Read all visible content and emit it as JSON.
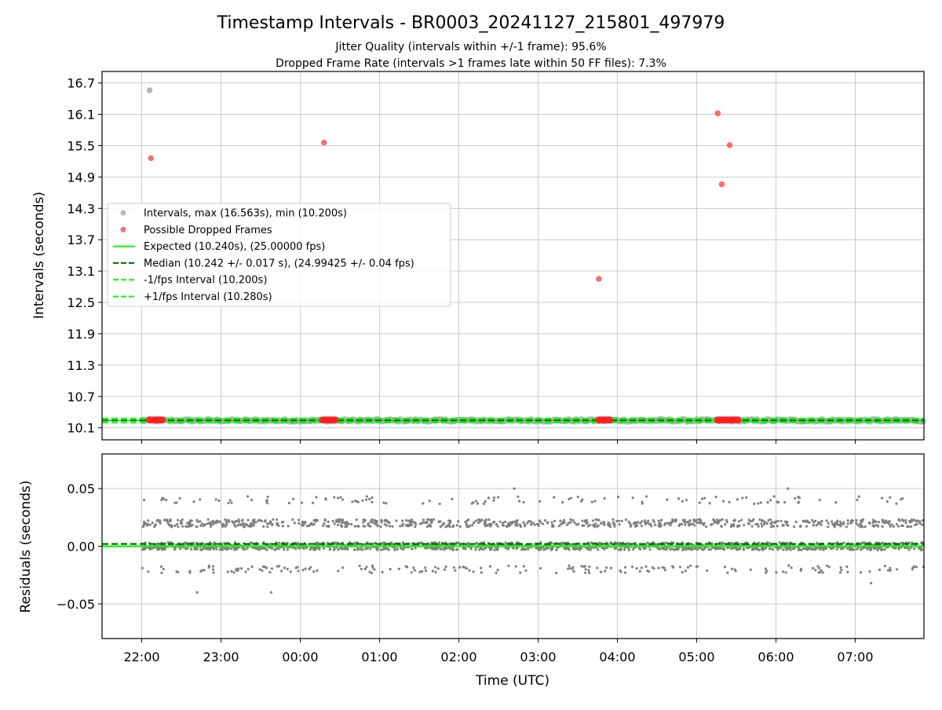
{
  "chart_data": [
    {
      "type": "scatter",
      "title": "Timestamp Intervals - BR0003_20241127_215801_497979",
      "subtitle_lines": [
        "Jitter Quality (intervals within +/-1 frame): 95.6%",
        "Dropped Frame Rate (intervals >1 frames late within 50 FF files): 7.3%"
      ],
      "xlabel": "",
      "ylabel": "Intervals (seconds)",
      "x_tick_labels": [
        "22:00",
        "23:00",
        "00:00",
        "01:00",
        "02:00",
        "03:00",
        "04:00",
        "05:00",
        "06:00",
        "07:00"
      ],
      "yticks": [
        10.1,
        10.7,
        11.3,
        11.9,
        12.5,
        13.1,
        13.7,
        14.3,
        14.9,
        15.5,
        16.1,
        16.7
      ],
      "ytick_labels": [
        "10.1",
        "10.7",
        "11.3",
        "11.9",
        "12.5",
        "13.1",
        "13.7",
        "14.3",
        "14.9",
        "15.5",
        "16.1",
        "16.7"
      ],
      "xlim": [
        "2024-11-27T21:30",
        "2024-11-28T07:52"
      ],
      "ylim": [
        9.87,
        16.92
      ],
      "grid": true,
      "legend_position": "center-left",
      "legend": [
        {
          "label": "Intervals, max (16.563s), min (10.200s)",
          "style": "marker",
          "color": "#a0a0a0"
        },
        {
          "label": "Possible Dropped Frames",
          "style": "marker",
          "color": "#ff5050"
        },
        {
          "label": "Expected (10.240s), (25.00000 fps)",
          "style": "solid",
          "color": "#00ff00"
        },
        {
          "label": "Median (10.242 +/- 0.017 s), (24.99425 +/- 0.04 fps)",
          "style": "dashed",
          "color": "#006400"
        },
        {
          "label": "-1/fps Interval (10.200s)",
          "style": "dashed",
          "color": "#00ff00"
        },
        {
          "label": "+1/fps Interval (10.280s)",
          "style": "dashed",
          "color": "#00ff00"
        }
      ],
      "series": [
        {
          "name": "Intervals, max (16.563s), min (10.200s)",
          "color": "#a0a0a0",
          "outliers": [
            {
              "x": "2024-11-27T22:06",
              "y": 16.56
            }
          ],
          "band": {
            "x_start": "2024-11-27T22:00",
            "x_end": "2024-11-28T07:52",
            "y_min": 10.2,
            "y_max": 10.28
          }
        },
        {
          "name": "Possible Dropped Frames",
          "color": "#ff5050",
          "points": [
            {
              "x": "2024-11-27T22:07",
              "y": 15.26
            },
            {
              "x": "2024-11-28T00:18",
              "y": 15.56
            },
            {
              "x": "2024-11-28T03:46",
              "y": 12.95
            },
            {
              "x": "2024-11-28T05:16",
              "y": 16.12
            },
            {
              "x": "2024-11-28T05:19",
              "y": 14.76
            },
            {
              "x": "2024-11-28T05:25",
              "y": 15.51
            }
          ],
          "clusters": [
            {
              "x_start": "2024-11-27T22:06",
              "x_end": "2024-11-27T22:16",
              "y": 10.25
            },
            {
              "x_start": "2024-11-28T00:17",
              "x_end": "2024-11-28T00:27",
              "y": 10.25
            },
            {
              "x_start": "2024-11-28T03:46",
              "x_end": "2024-11-28T03:55",
              "y": 10.25
            },
            {
              "x_start": "2024-11-28T05:16",
              "x_end": "2024-11-28T05:32",
              "y": 10.25
            }
          ]
        }
      ],
      "reference_lines": [
        {
          "name": "Expected",
          "y": 10.24,
          "color": "#00ff00",
          "style": "solid"
        },
        {
          "name": "Median",
          "y": 10.242,
          "color": "#006400",
          "style": "dashed"
        },
        {
          "name": "-1/fps Interval",
          "y": 10.2,
          "color": "#00ff00",
          "style": "dashed"
        },
        {
          "name": "+1/fps Interval",
          "y": 10.28,
          "color": "#00ff00",
          "style": "dashed"
        }
      ]
    },
    {
      "type": "scatter",
      "title": "",
      "xlabel": "Time (UTC)",
      "ylabel": "Residuals (seconds)",
      "x_tick_labels": [
        "22:00",
        "23:00",
        "00:00",
        "01:00",
        "02:00",
        "03:00",
        "04:00",
        "05:00",
        "06:00",
        "07:00"
      ],
      "yticks": [
        -0.05,
        0.0,
        0.05
      ],
      "ytick_labels": [
        "−0.05",
        "0.00",
        "0.05"
      ],
      "xlim": [
        "2024-11-27T21:30",
        "2024-11-28T07:52"
      ],
      "ylim": [
        -0.08,
        0.08
      ],
      "grid": true,
      "series": [
        {
          "name": "Residuals",
          "color": "#808080",
          "x_start": "2024-11-27T22:00",
          "x_end": "2024-11-28T07:52",
          "levels": [
            {
              "y": 0.0,
              "share": 0.55
            },
            {
              "y": 0.02,
              "share": 0.33
            },
            {
              "y": -0.02,
              "share": 0.07
            },
            {
              "y": 0.04,
              "share": 0.05
            }
          ],
          "outliers": [
            {
              "x": "2024-11-27T22:42",
              "y": -0.04
            },
            {
              "x": "2024-11-27T23:38",
              "y": -0.04
            },
            {
              "x": "2024-11-28T06:09",
              "y": 0.05
            },
            {
              "x": "2024-11-28T02:42",
              "y": 0.05
            },
            {
              "x": "2024-11-28T07:12",
              "y": -0.032
            }
          ]
        }
      ],
      "reference_lines": [
        {
          "name": "Expected",
          "y": 0.0,
          "color": "#00ff00",
          "style": "solid"
        },
        {
          "name": "Median",
          "y": 0.002,
          "color": "#006400",
          "style": "dashed"
        }
      ]
    }
  ]
}
